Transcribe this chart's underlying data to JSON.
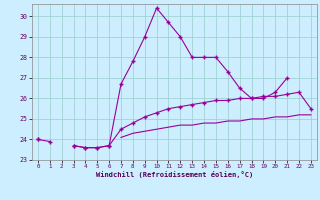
{
  "title": "",
  "xlabel": "Windchill (Refroidissement éolien,°C)",
  "ylabel": "",
  "xlim": [
    -0.5,
    23.5
  ],
  "ylim": [
    23.0,
    30.6
  ],
  "yticks": [
    23,
    24,
    25,
    26,
    27,
    28,
    29,
    30
  ],
  "xticks": [
    0,
    1,
    2,
    3,
    4,
    5,
    6,
    7,
    8,
    9,
    10,
    11,
    12,
    13,
    14,
    15,
    16,
    17,
    18,
    19,
    20,
    21,
    22,
    23
  ],
  "bg_color": "#cceeff",
  "grid_color": "#99cccc",
  "line_color": "#990099",
  "hours": [
    0,
    1,
    2,
    3,
    4,
    5,
    6,
    7,
    8,
    9,
    10,
    11,
    12,
    13,
    14,
    15,
    16,
    17,
    18,
    19,
    20,
    21,
    22,
    23
  ],
  "curve1": [
    24.0,
    23.9,
    null,
    23.7,
    23.6,
    23.6,
    23.7,
    26.7,
    27.8,
    29.0,
    30.4,
    29.7,
    29.0,
    28.0,
    28.0,
    28.0,
    27.3,
    26.5,
    26.0,
    26.0,
    26.3,
    27.0,
    null,
    null
  ],
  "curve2": [
    24.0,
    null,
    null,
    23.7,
    23.6,
    23.6,
    23.7,
    24.5,
    24.8,
    25.1,
    25.3,
    25.5,
    25.6,
    25.7,
    25.8,
    25.9,
    25.9,
    26.0,
    26.0,
    26.1,
    26.1,
    26.2,
    26.3,
    25.5
  ],
  "curve3": [
    24.0,
    null,
    null,
    null,
    null,
    null,
    null,
    24.1,
    24.3,
    24.4,
    24.5,
    24.6,
    24.7,
    24.7,
    24.8,
    24.8,
    24.9,
    24.9,
    25.0,
    25.0,
    25.1,
    25.1,
    25.2,
    25.2
  ]
}
